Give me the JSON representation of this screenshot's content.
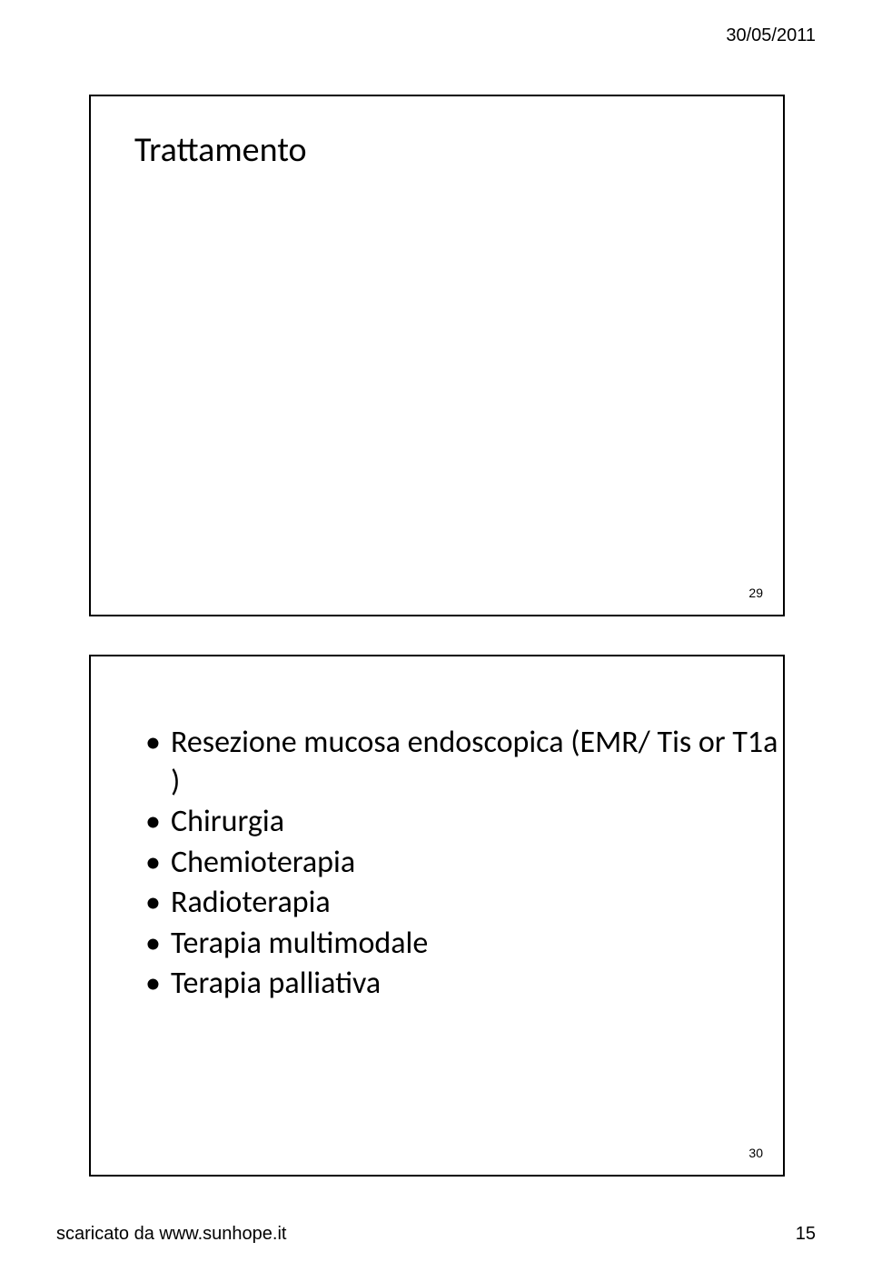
{
  "header": {
    "date": "30/05/2011"
  },
  "slide1": {
    "title": "Trattamento",
    "page_number": "29"
  },
  "slide2": {
    "items": [
      "Resezione mucosa endoscopica (EMR/ Tis or T1a )",
      "Chirurgia",
      "Chemioterapia",
      "Radioterapia",
      "Terapia multimodale",
      "Terapia palliativa"
    ],
    "page_number": "30"
  },
  "footer": {
    "source": "scaricato da www.sunhope.it",
    "page": "15"
  }
}
